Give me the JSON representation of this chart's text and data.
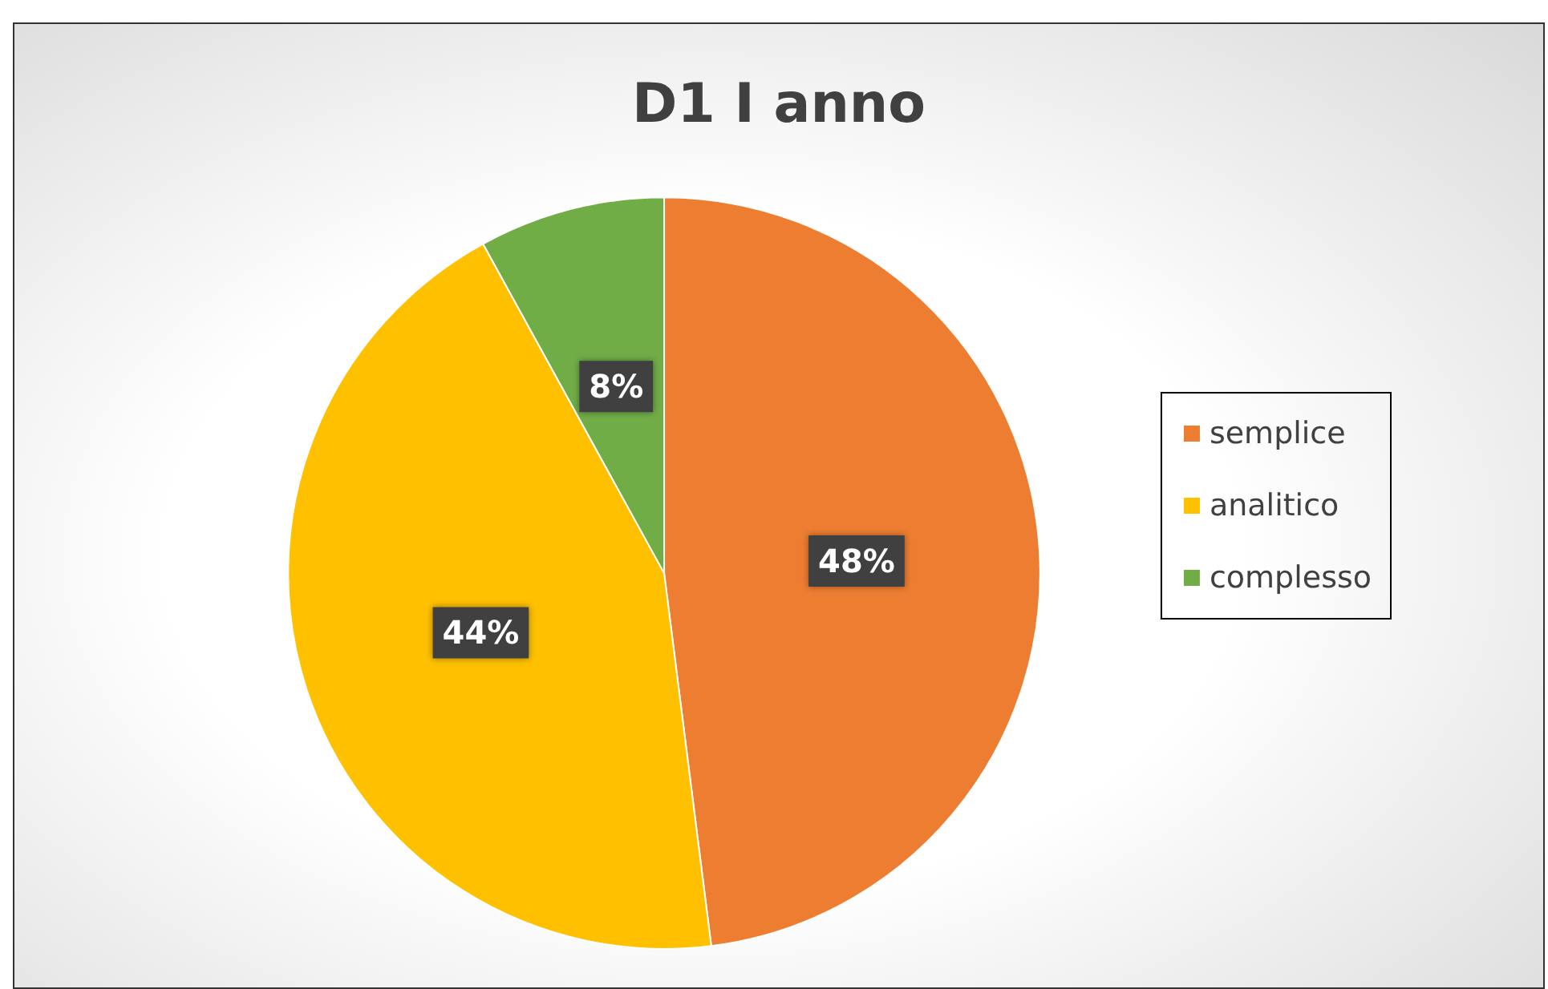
{
  "chart_data": {
    "type": "pie",
    "title": "D1 I anno",
    "categories": [
      "semplice",
      "analitico",
      "complesso"
    ],
    "values": [
      48,
      44,
      8
    ],
    "colors": [
      "#ed7d31",
      "#ffc000",
      "#70ad47"
    ],
    "value_labels": [
      "48%",
      "44%",
      "8%"
    ],
    "legend": "right"
  }
}
